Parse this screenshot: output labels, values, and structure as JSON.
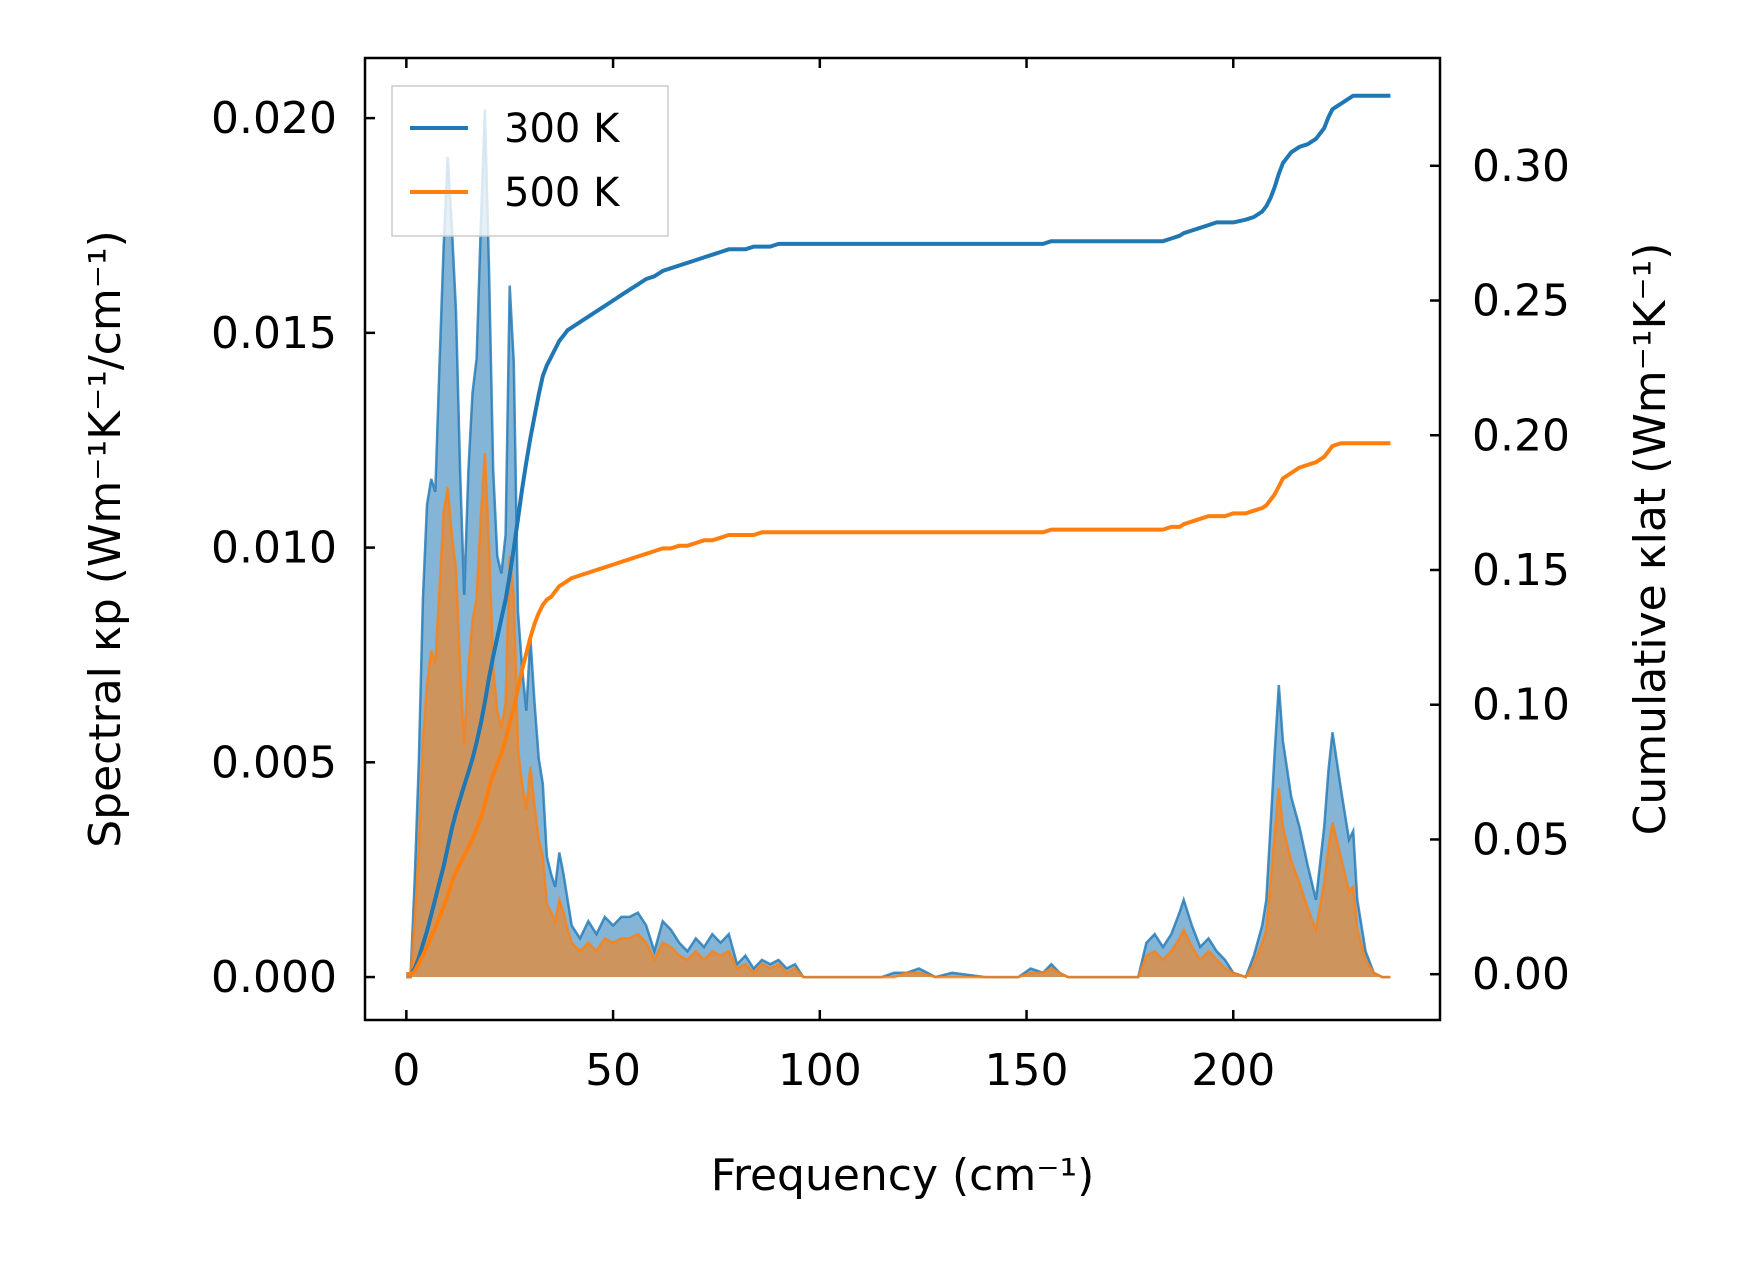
{
  "chart_data": {
    "type": "area",
    "x": [
      0,
      1,
      2,
      3,
      4,
      5,
      6,
      7,
      8,
      9,
      10,
      11,
      12,
      13,
      14,
      15,
      16,
      17,
      18,
      19,
      20,
      21,
      22,
      23,
      24,
      25,
      26,
      27,
      28,
      29,
      30,
      31,
      32,
      33,
      34,
      35,
      36,
      37,
      38,
      39,
      40,
      42,
      44,
      46,
      48,
      50,
      52,
      54,
      56,
      58,
      60,
      62,
      64,
      66,
      68,
      70,
      72,
      74,
      76,
      78,
      80,
      82,
      84,
      86,
      88,
      90,
      92,
      94,
      96,
      98,
      100,
      105,
      110,
      115,
      118,
      121,
      124,
      128,
      132,
      140,
      148,
      151,
      154,
      156,
      158,
      160,
      170,
      177,
      179,
      181,
      183,
      185,
      187,
      188,
      190,
      192,
      194,
      196,
      198,
      200,
      203,
      205,
      207,
      208,
      209,
      210,
      211,
      212,
      214,
      216,
      218,
      220,
      222,
      223,
      224,
      226,
      228,
      229,
      230,
      232,
      234,
      236,
      238
    ],
    "xlabel": "Frequency (cm⁻¹)",
    "ylabel_left": "Spectral κp (Wm⁻¹K⁻¹/cm⁻¹)",
    "ylabel_right": "Cumulative κlat (Wm⁻¹K⁻¹)",
    "xlim": [
      -10,
      250
    ],
    "ylim_left": [
      -0.001,
      0.0214
    ],
    "ylim_right": [
      -0.017,
      0.34
    ],
    "xticks": [
      "0",
      "50",
      "100",
      "150",
      "200"
    ],
    "yticks_left": [
      "0.000",
      "0.005",
      "0.010",
      "0.015",
      "0.020"
    ],
    "yticks_right": [
      "0.00",
      "0.05",
      "0.10",
      "0.15",
      "0.20",
      "0.25",
      "0.30"
    ],
    "legend_position": "upper-left",
    "series": [
      {
        "name": "300 K",
        "color": "#1f77b4",
        "spectral": [
          0,
          0,
          0.0022,
          0.005,
          0.0088,
          0.011,
          0.0116,
          0.0113,
          0.0142,
          0.017,
          0.0191,
          0.0175,
          0.0155,
          0.0118,
          0.0089,
          0.0118,
          0.0136,
          0.0144,
          0.0175,
          0.0202,
          0.0165,
          0.0118,
          0.0098,
          0.0094,
          0.0103,
          0.0161,
          0.0143,
          0.0085,
          0.0072,
          0.0062,
          0.0079,
          0.0064,
          0.0051,
          0.0045,
          0.0028,
          0.0024,
          0.0021,
          0.0029,
          0.0024,
          0.0018,
          0.0012,
          0.0009,
          0.0013,
          0.001,
          0.0014,
          0.0012,
          0.0014,
          0.0014,
          0.0015,
          0.0012,
          0.0006,
          0.0013,
          0.0011,
          0.0008,
          0.0006,
          0.0009,
          0.0007,
          0.001,
          0.0008,
          0.001,
          0.0003,
          0.0005,
          0.0002,
          0.0004,
          0.0003,
          0.0004,
          0.0002,
          0.0003,
          0,
          0,
          0,
          0,
          0,
          0,
          0.0001,
          0.0001,
          0.0002,
          0,
          0.0001,
          0,
          0,
          0.0002,
          0.0001,
          0.0003,
          0.0001,
          0,
          0,
          0,
          0.0008,
          0.001,
          0.0007,
          0.001,
          0.0015,
          0.0018,
          0.0012,
          0.0007,
          0.0009,
          0.0006,
          0.0004,
          0.0001,
          0,
          0.0005,
          0.0012,
          0.0018,
          0.0035,
          0.0052,
          0.0068,
          0.0055,
          0.0042,
          0.0035,
          0.0026,
          0.0018,
          0.0035,
          0.0048,
          0.0057,
          0.0044,
          0.0032,
          0.0034,
          0.0018,
          0.0006,
          0.0001,
          0,
          0
        ],
        "cumulative": [
          0,
          0,
          0.002,
          0.006,
          0.011,
          0.016,
          0.022,
          0.028,
          0.034,
          0.04,
          0.047,
          0.054,
          0.06,
          0.065,
          0.07,
          0.075,
          0.08,
          0.086,
          0.093,
          0.101,
          0.11,
          0.118,
          0.125,
          0.132,
          0.139,
          0.148,
          0.158,
          0.169,
          0.18,
          0.19,
          0.199,
          0.207,
          0.215,
          0.222,
          0.226,
          0.229,
          0.232,
          0.235,
          0.237,
          0.239,
          0.24,
          0.242,
          0.244,
          0.246,
          0.248,
          0.25,
          0.252,
          0.254,
          0.256,
          0.258,
          0.259,
          0.261,
          0.262,
          0.263,
          0.264,
          0.265,
          0.266,
          0.267,
          0.268,
          0.269,
          0.269,
          0.269,
          0.27,
          0.27,
          0.27,
          0.271,
          0.271,
          0.271,
          0.271,
          0.271,
          0.271,
          0.271,
          0.271,
          0.271,
          0.271,
          0.271,
          0.271,
          0.271,
          0.271,
          0.271,
          0.271,
          0.271,
          0.271,
          0.272,
          0.272,
          0.272,
          0.272,
          0.272,
          0.272,
          0.272,
          0.272,
          0.273,
          0.274,
          0.275,
          0.276,
          0.277,
          0.278,
          0.279,
          0.279,
          0.279,
          0.28,
          0.281,
          0.283,
          0.285,
          0.288,
          0.292,
          0.297,
          0.301,
          0.305,
          0.307,
          0.308,
          0.31,
          0.314,
          0.318,
          0.321,
          0.323,
          0.325,
          0.326,
          0.326,
          0.326,
          0.326,
          0.326,
          0.326
        ]
      },
      {
        "name": "500 K",
        "color": "#ff7f0e",
        "spectral": [
          0,
          0,
          0.0013,
          0.003,
          0.0055,
          0.0068,
          0.0076,
          0.0073,
          0.009,
          0.0108,
          0.0114,
          0.0103,
          0.0095,
          0.0072,
          0.0054,
          0.0072,
          0.0083,
          0.0088,
          0.0107,
          0.0122,
          0.01,
          0.0072,
          0.0062,
          0.0058,
          0.0064,
          0.0098,
          0.0088,
          0.0053,
          0.0045,
          0.0039,
          0.0049,
          0.004,
          0.0032,
          0.0028,
          0.0017,
          0.0015,
          0.0013,
          0.0018,
          0.0015,
          0.0011,
          0.0008,
          0.0006,
          0.0008,
          0.0006,
          0.0009,
          0.0008,
          0.0009,
          0.0009,
          0.001,
          0.0008,
          0.0004,
          0.0008,
          0.0007,
          0.0005,
          0.0004,
          0.0006,
          0.0004,
          0.0006,
          0.0005,
          0.0006,
          0.0002,
          0.0003,
          0.0001,
          0.0003,
          0.0002,
          0.0003,
          0.0001,
          0.0002,
          0,
          0,
          0,
          0,
          0,
          0,
          0,
          0.0001,
          0.0001,
          0,
          0,
          0,
          0,
          0.0001,
          0.0001,
          0.0002,
          0.0001,
          0,
          0,
          0,
          0.0005,
          0.0006,
          0.0004,
          0.0006,
          0.0009,
          0.0011,
          0.0007,
          0.0004,
          0.0006,
          0.0004,
          0.0002,
          0.0001,
          0,
          0.0003,
          0.0008,
          0.0011,
          0.0022,
          0.0033,
          0.0044,
          0.0035,
          0.0027,
          0.0022,
          0.0016,
          0.0011,
          0.0022,
          0.003,
          0.0036,
          0.0028,
          0.002,
          0.0021,
          0.0011,
          0.0004,
          0.0001,
          0,
          0
        ],
        "cumulative": [
          0,
          0,
          0.001,
          0.004,
          0.007,
          0.01,
          0.014,
          0.017,
          0.021,
          0.025,
          0.029,
          0.034,
          0.038,
          0.041,
          0.044,
          0.047,
          0.05,
          0.054,
          0.058,
          0.063,
          0.069,
          0.074,
          0.078,
          0.082,
          0.087,
          0.093,
          0.099,
          0.106,
          0.113,
          0.119,
          0.125,
          0.13,
          0.134,
          0.137,
          0.139,
          0.14,
          0.142,
          0.144,
          0.145,
          0.146,
          0.147,
          0.148,
          0.149,
          0.15,
          0.151,
          0.152,
          0.153,
          0.154,
          0.155,
          0.156,
          0.157,
          0.158,
          0.158,
          0.159,
          0.159,
          0.16,
          0.161,
          0.161,
          0.162,
          0.163,
          0.163,
          0.163,
          0.163,
          0.164,
          0.164,
          0.164,
          0.164,
          0.164,
          0.164,
          0.164,
          0.164,
          0.164,
          0.164,
          0.164,
          0.164,
          0.164,
          0.164,
          0.164,
          0.164,
          0.164,
          0.164,
          0.164,
          0.164,
          0.165,
          0.165,
          0.165,
          0.165,
          0.165,
          0.165,
          0.165,
          0.165,
          0.166,
          0.166,
          0.167,
          0.168,
          0.169,
          0.17,
          0.17,
          0.17,
          0.171,
          0.171,
          0.172,
          0.173,
          0.174,
          0.176,
          0.178,
          0.181,
          0.184,
          0.186,
          0.188,
          0.189,
          0.19,
          0.192,
          0.194,
          0.196,
          0.197,
          0.197,
          0.197,
          0.197,
          0.197,
          0.197,
          0.197,
          0.197
        ]
      }
    ]
  }
}
